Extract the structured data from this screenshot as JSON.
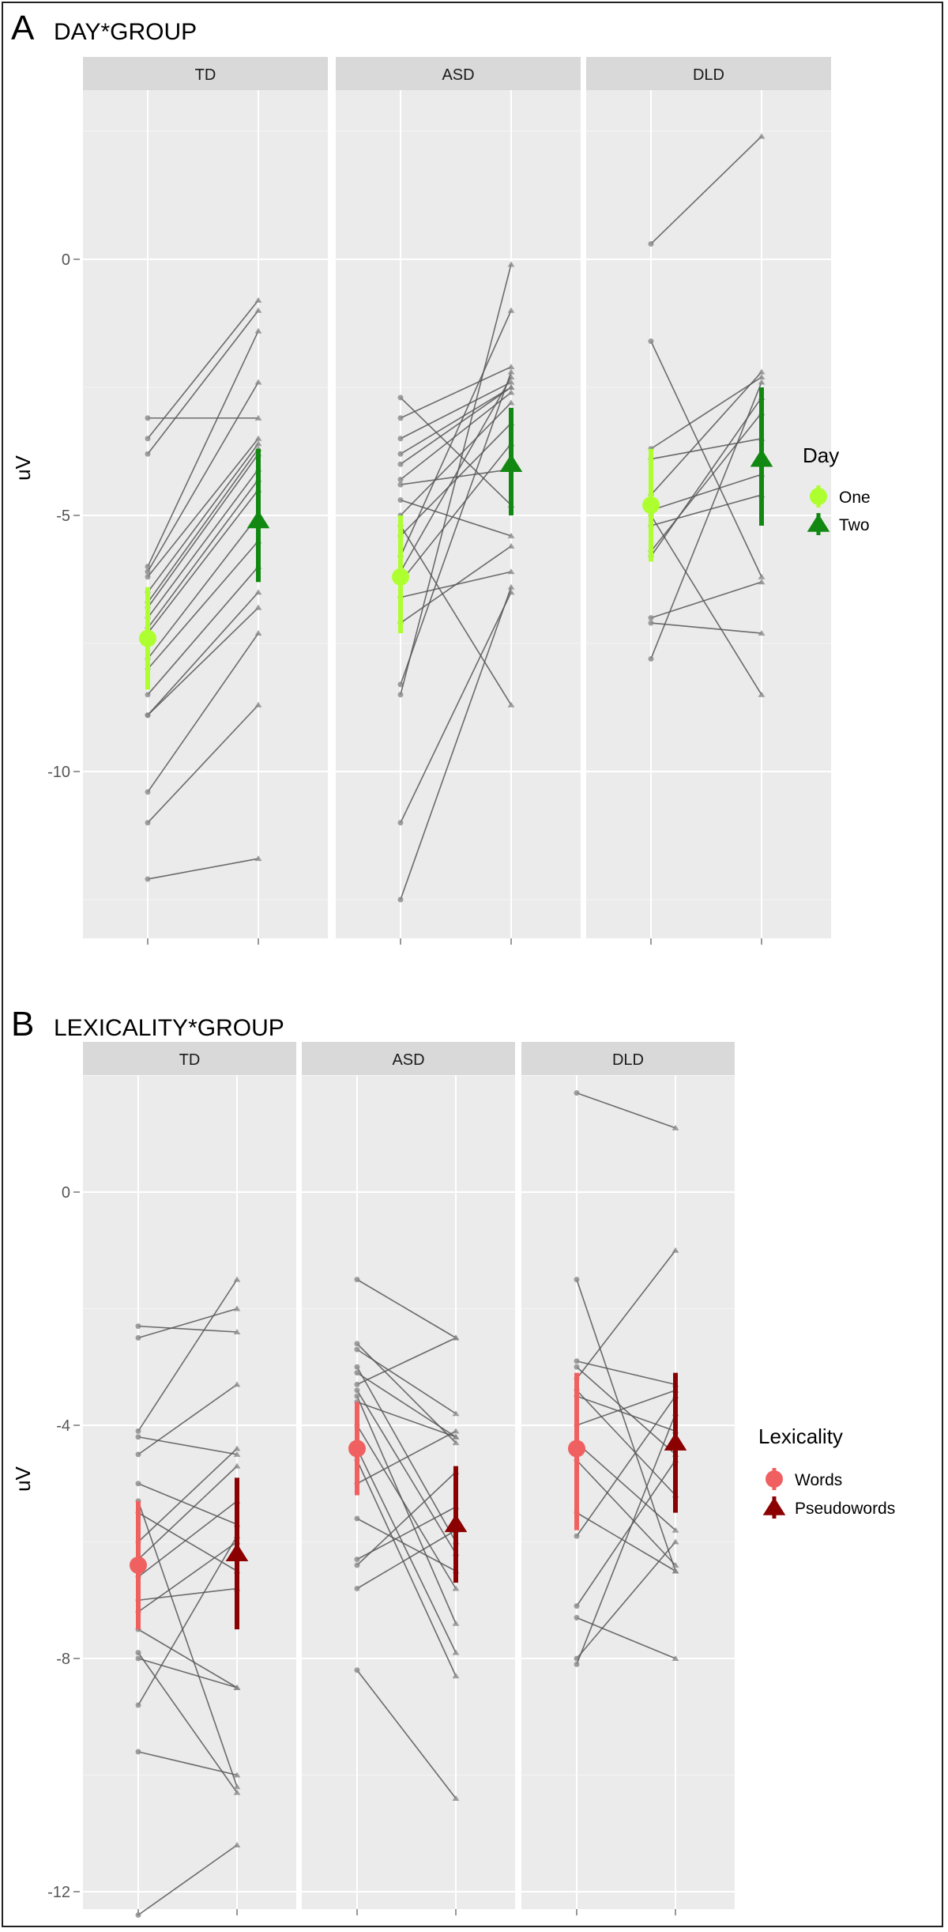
{
  "chart_data": [
    {
      "type": "line",
      "panel_letter": "A",
      "title": "DAY*GROUP",
      "ylabel": "uV",
      "ylim": [
        -12.9,
        2.9
      ],
      "yticks": [
        0,
        -5,
        -10
      ],
      "facets": [
        "TD",
        "ASD",
        "DLD"
      ],
      "legend": {
        "title": "Day",
        "placement": "right",
        "entries": [
          {
            "label": "One",
            "color": "#adff2f",
            "shape": "circle"
          },
          {
            "label": "Two",
            "color": "#118811",
            "shape": "triangle"
          }
        ]
      },
      "individual_pairs": {
        "TD": [
          [
            -3.1,
            -3.1
          ],
          [
            -3.5,
            -0.8
          ],
          [
            -3.8,
            -1.0
          ],
          [
            -6.0,
            -1.4
          ],
          [
            -6.1,
            -2.4
          ],
          [
            -6.2,
            -3.5
          ],
          [
            -6.5,
            -3.6
          ],
          [
            -6.7,
            -3.7
          ],
          [
            -6.8,
            -3.8
          ],
          [
            -7.0,
            -4.1
          ],
          [
            -7.2,
            -4.3
          ],
          [
            -7.3,
            -4.5
          ],
          [
            -7.8,
            -5.0
          ],
          [
            -8.0,
            -5.5
          ],
          [
            -8.5,
            -6.0
          ],
          [
            -8.9,
            -6.5
          ],
          [
            -8.9,
            -6.8
          ],
          [
            -10.4,
            -7.3
          ],
          [
            -11.0,
            -8.7
          ],
          [
            -12.1,
            -11.7
          ]
        ],
        "ASD": [
          [
            -2.7,
            -4.8
          ],
          [
            -3.1,
            -2.1
          ],
          [
            -3.5,
            -2.4
          ],
          [
            -3.8,
            -2.5
          ],
          [
            -4.0,
            -2.5
          ],
          [
            -4.3,
            -2.6
          ],
          [
            -4.7,
            -5.4
          ],
          [
            -5.0,
            -2.8
          ],
          [
            -5.4,
            -3.2
          ],
          [
            -5.8,
            -1.0
          ],
          [
            -6.1,
            -2.3
          ],
          [
            -6.6,
            -6.1
          ],
          [
            -7.1,
            -5.6
          ],
          [
            -8.3,
            -2.2
          ],
          [
            -8.5,
            -0.1
          ],
          [
            -11.0,
            -6.5
          ],
          [
            -12.5,
            -6.4
          ],
          [
            -5.2,
            -8.7
          ],
          [
            -4.4,
            -4.1
          ],
          [
            -6.3,
            -3.6
          ]
        ],
        "DLD": [
          [
            0.3,
            2.4
          ],
          [
            -1.6,
            -6.2
          ],
          [
            -3.7,
            -2.3
          ],
          [
            -3.9,
            -3.5
          ],
          [
            -4.6,
            -2.2
          ],
          [
            -4.9,
            -4.2
          ],
          [
            -5.2,
            -4.6
          ],
          [
            -5.7,
            -3.0
          ],
          [
            -5.8,
            -2.7
          ],
          [
            -7.0,
            -6.3
          ],
          [
            -7.1,
            -7.3
          ],
          [
            -7.8,
            -2.4
          ],
          [
            -5.0,
            -8.5
          ]
        ]
      },
      "means": {
        "TD": {
          "One": {
            "mean": -7.4,
            "lo": -8.4,
            "hi": -6.4
          },
          "Two": {
            "mean": -5.1,
            "lo": -6.3,
            "hi": -3.7
          }
        },
        "ASD": {
          "One": {
            "mean": -6.2,
            "lo": -7.3,
            "hi": -5.0
          },
          "Two": {
            "mean": -4.0,
            "lo": -5.0,
            "hi": -2.9
          }
        },
        "DLD": {
          "One": {
            "mean": -4.8,
            "lo": -5.9,
            "hi": -3.7
          },
          "Two": {
            "mean": -3.9,
            "lo": -5.2,
            "hi": -2.5
          }
        }
      }
    },
    {
      "type": "line",
      "panel_letter": "B",
      "title": "LEXICALITY*GROUP",
      "ylabel": "uV",
      "ylim": [
        -13.0,
        2.4
      ],
      "yticks": [
        0,
        -4,
        -8,
        -12
      ],
      "facets": [
        "TD",
        "ASD",
        "DLD"
      ],
      "legend": {
        "title": "Lexicality",
        "placement": "right",
        "entries": [
          {
            "label": "Words",
            "color": "#f06060",
            "shape": "circle"
          },
          {
            "label": "Pseudowords",
            "color": "#8b0000",
            "shape": "triangle"
          }
        ]
      },
      "individual_pairs": {
        "TD": [
          [
            -2.3,
            -2.4
          ],
          [
            -2.5,
            -2.0
          ],
          [
            -4.1,
            -1.5
          ],
          [
            -4.2,
            -4.5
          ],
          [
            -4.5,
            -3.3
          ],
          [
            -5.0,
            -5.7
          ],
          [
            -5.5,
            -6.5
          ],
          [
            -6.0,
            -4.4
          ],
          [
            -6.3,
            -4.7
          ],
          [
            -6.6,
            -5.3
          ],
          [
            -7.0,
            -6.8
          ],
          [
            -7.5,
            -8.5
          ],
          [
            -7.9,
            -10.3
          ],
          [
            -8.0,
            -8.5
          ],
          [
            -8.8,
            -5.9
          ],
          [
            -9.6,
            -10.0
          ],
          [
            -12.4,
            -11.2
          ],
          [
            -5.3,
            -10.2
          ],
          [
            -7.2,
            -6.0
          ]
        ],
        "ASD": [
          [
            -1.5,
            -2.5
          ],
          [
            -2.6,
            -4.3
          ],
          [
            -2.7,
            -3.8
          ],
          [
            -3.0,
            -6.0
          ],
          [
            -3.1,
            -4.2
          ],
          [
            -3.4,
            -6.2
          ],
          [
            -3.5,
            -7.4
          ],
          [
            -3.6,
            -4.2
          ],
          [
            -4.0,
            -6.8
          ],
          [
            -4.4,
            -7.9
          ],
          [
            -5.0,
            -4.1
          ],
          [
            -5.6,
            -6.5
          ],
          [
            -6.3,
            -5.4
          ],
          [
            -6.4,
            -4.8
          ],
          [
            -6.8,
            -5.8
          ],
          [
            -8.2,
            -10.4
          ],
          [
            -4.6,
            -8.3
          ],
          [
            -3.3,
            -2.5
          ]
        ],
        "DLD": [
          [
            1.7,
            1.1
          ],
          [
            -1.5,
            -6.5
          ],
          [
            -2.9,
            -3.3
          ],
          [
            -3.0,
            -4.5
          ],
          [
            -3.2,
            -1.0
          ],
          [
            -3.5,
            -4.1
          ],
          [
            -4.0,
            -3.4
          ],
          [
            -4.3,
            -5.8
          ],
          [
            -5.5,
            -6.5
          ],
          [
            -5.9,
            -3.5
          ],
          [
            -7.1,
            -4.6
          ],
          [
            -7.3,
            -8.0
          ],
          [
            -8.0,
            -6.0
          ],
          [
            -8.1,
            -3.8
          ],
          [
            -4.6,
            -6.4
          ],
          [
            -3.4,
            -5.2
          ]
        ]
      },
      "means": {
        "TD": {
          "Words": {
            "mean": -6.4,
            "lo": -7.5,
            "hi": -5.3
          },
          "Pseudowords": {
            "mean": -6.2,
            "lo": -7.5,
            "hi": -4.9
          }
        },
        "ASD": {
          "Words": {
            "mean": -4.4,
            "lo": -5.2,
            "hi": -3.6
          },
          "Pseudowords": {
            "mean": -5.7,
            "lo": -6.7,
            "hi": -4.7
          }
        },
        "DLD": {
          "Words": {
            "mean": -4.4,
            "lo": -5.8,
            "hi": -3.1
          },
          "Pseudowords": {
            "mean": -4.3,
            "lo": -5.5,
            "hi": -3.1
          }
        }
      }
    }
  ]
}
